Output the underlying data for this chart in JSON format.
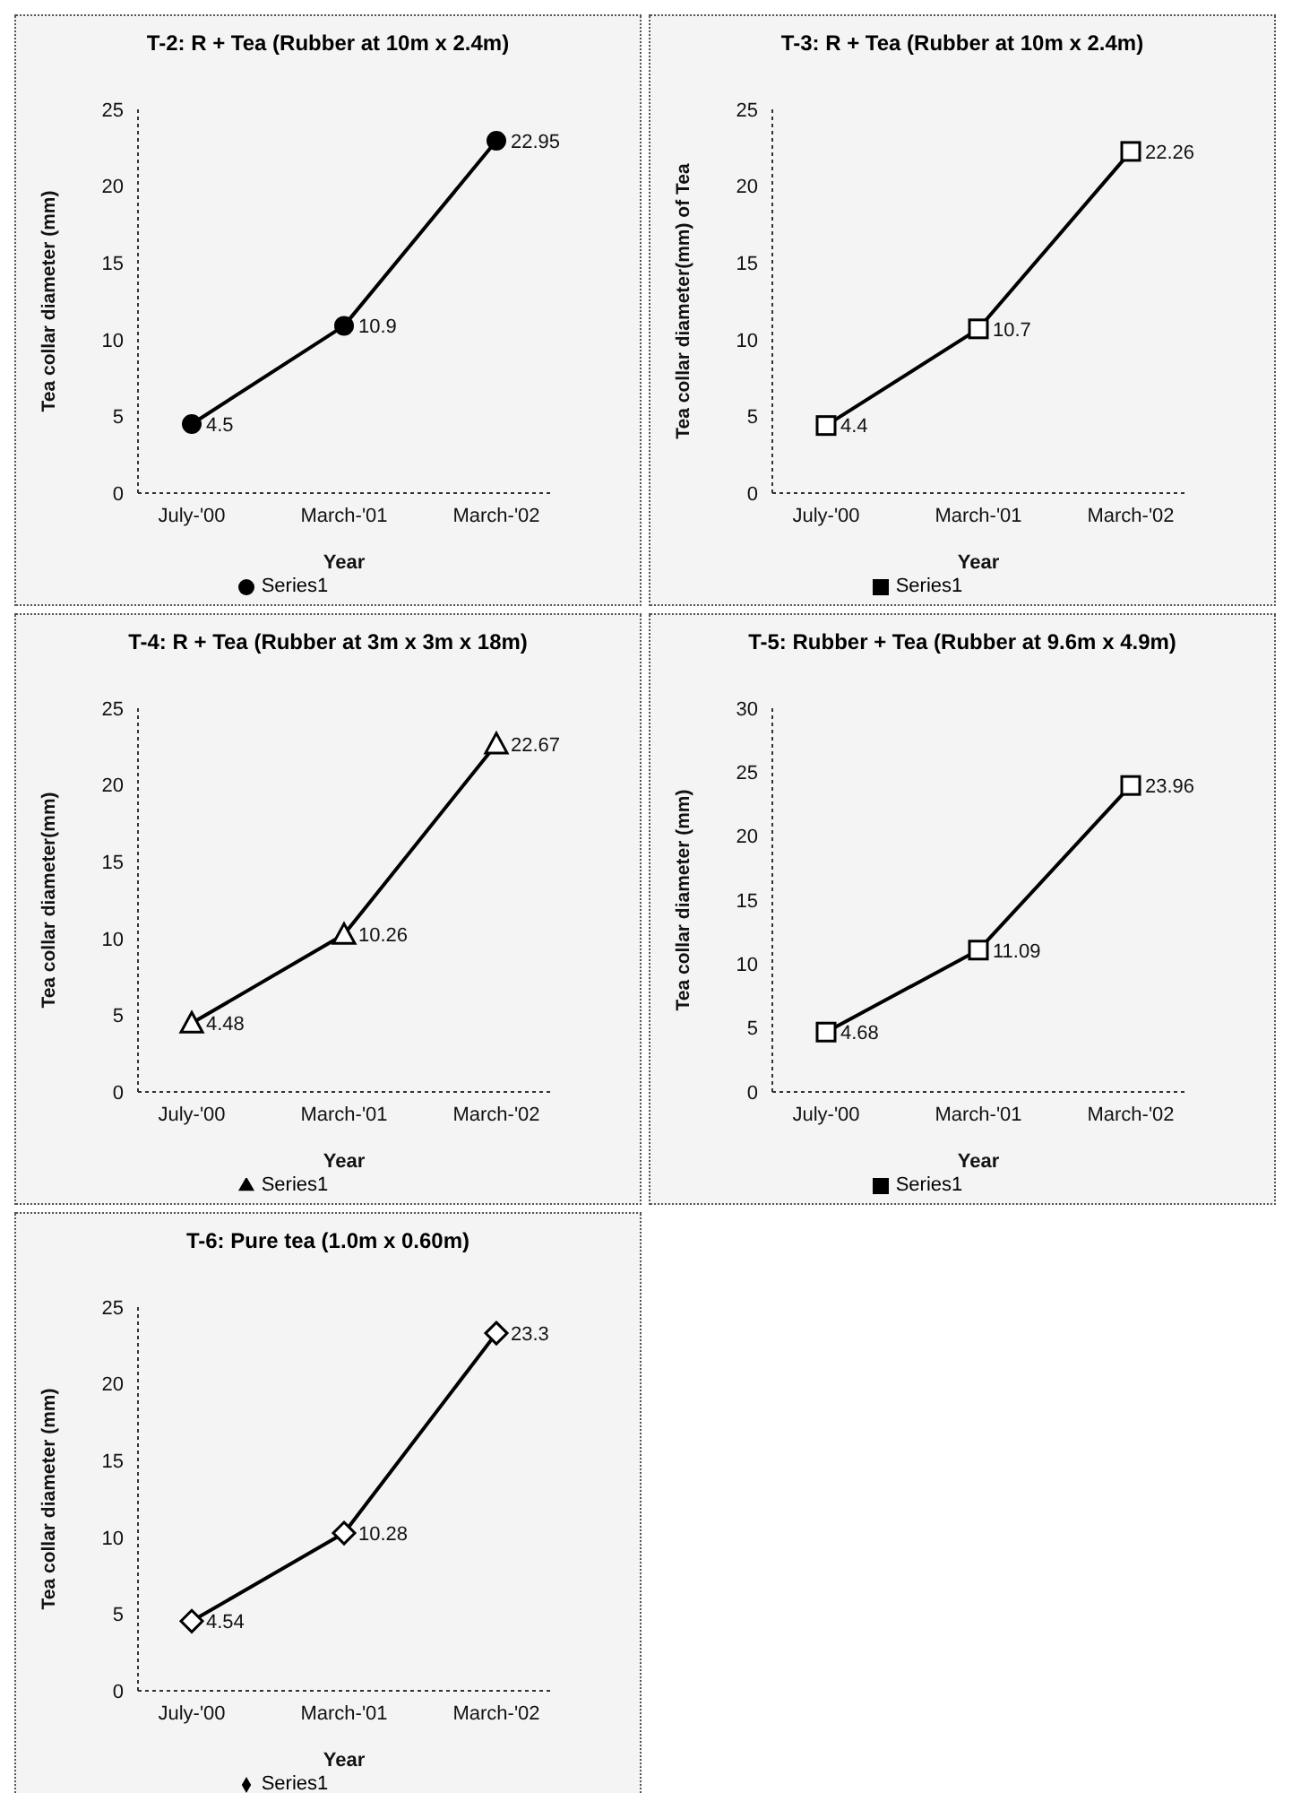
{
  "chart_data": [
    {
      "type": "line",
      "title": "T-2: R + Tea (Rubber at 10m x 2.4m)",
      "xlabel": "Year",
      "ylabel": "Tea collar diameter (mm)",
      "categories": [
        "July-'00",
        "March-'01",
        "March-'02"
      ],
      "series": [
        {
          "name": "Series1",
          "color": "#000000",
          "values": [
            4.5,
            10.9,
            22.95
          ]
        }
      ],
      "ylim": [
        0,
        25
      ],
      "yticks": [
        0,
        5,
        10,
        15,
        20,
        25
      ],
      "marker": "circle",
      "line_style": "solid",
      "data_labels": true,
      "legend": "bottom",
      "grid": false
    },
    {
      "type": "line",
      "title": "T-3: R + Tea (Rubber at 10m x 2.4m)",
      "xlabel": "Year",
      "ylabel": "Tea collar diameter(mm) of Tea",
      "categories": [
        "July-'00",
        "March-'01",
        "March-'02"
      ],
      "series": [
        {
          "name": "Series1",
          "color": "#000000",
          "values": [
            4.4,
            10.7,
            22.26
          ]
        }
      ],
      "ylim": [
        0,
        25
      ],
      "yticks": [
        0,
        5,
        10,
        15,
        20,
        25
      ],
      "marker": "square",
      "line_style": "solid",
      "data_labels": true,
      "legend": "bottom",
      "grid": false
    },
    {
      "type": "line",
      "title": "T-4: R + Tea (Rubber at 3m x 3m x 18m)",
      "xlabel": "Year",
      "ylabel": "Tea collar diameter(mm)",
      "categories": [
        "July-'00",
        "March-'01",
        "March-'02"
      ],
      "series": [
        {
          "name": "Series1",
          "color": "#000000",
          "values": [
            4.48,
            10.26,
            22.67
          ]
        }
      ],
      "ylim": [
        0,
        25
      ],
      "yticks": [
        0,
        5,
        10,
        15,
        20,
        25
      ],
      "marker": "triangle",
      "line_style": "solid",
      "data_labels": true,
      "legend": "bottom",
      "grid": false
    },
    {
      "type": "line",
      "title": "T-5: Rubber + Tea (Rubber at 9.6m x 4.9m)",
      "xlabel": "Year",
      "ylabel": "Tea collar diameter (mm)",
      "categories": [
        "July-'00",
        "March-'01",
        "March-'02"
      ],
      "series": [
        {
          "name": "Series1",
          "color": "#000000",
          "values": [
            4.68,
            11.09,
            23.96
          ]
        }
      ],
      "ylim": [
        0,
        30
      ],
      "yticks": [
        0,
        5,
        10,
        15,
        20,
        25,
        30
      ],
      "marker": "square",
      "line_style": "solid",
      "data_labels": true,
      "legend": "bottom",
      "grid": false
    },
    {
      "type": "line",
      "title": "T-6: Pure tea (1.0m x 0.60m)",
      "xlabel": "Year",
      "ylabel": "Tea collar diameter (mm)",
      "categories": [
        "July-'00",
        "March-'01",
        "March-'02"
      ],
      "series": [
        {
          "name": "Series1",
          "color": "#000000",
          "values": [
            4.54,
            10.28,
            23.3
          ]
        }
      ],
      "ylim": [
        0,
        25
      ],
      "yticks": [
        0,
        5,
        10,
        15,
        20,
        25
      ],
      "marker": "diamond",
      "line_style": "solid",
      "data_labels": true,
      "legend": "bottom",
      "grid": false
    }
  ]
}
